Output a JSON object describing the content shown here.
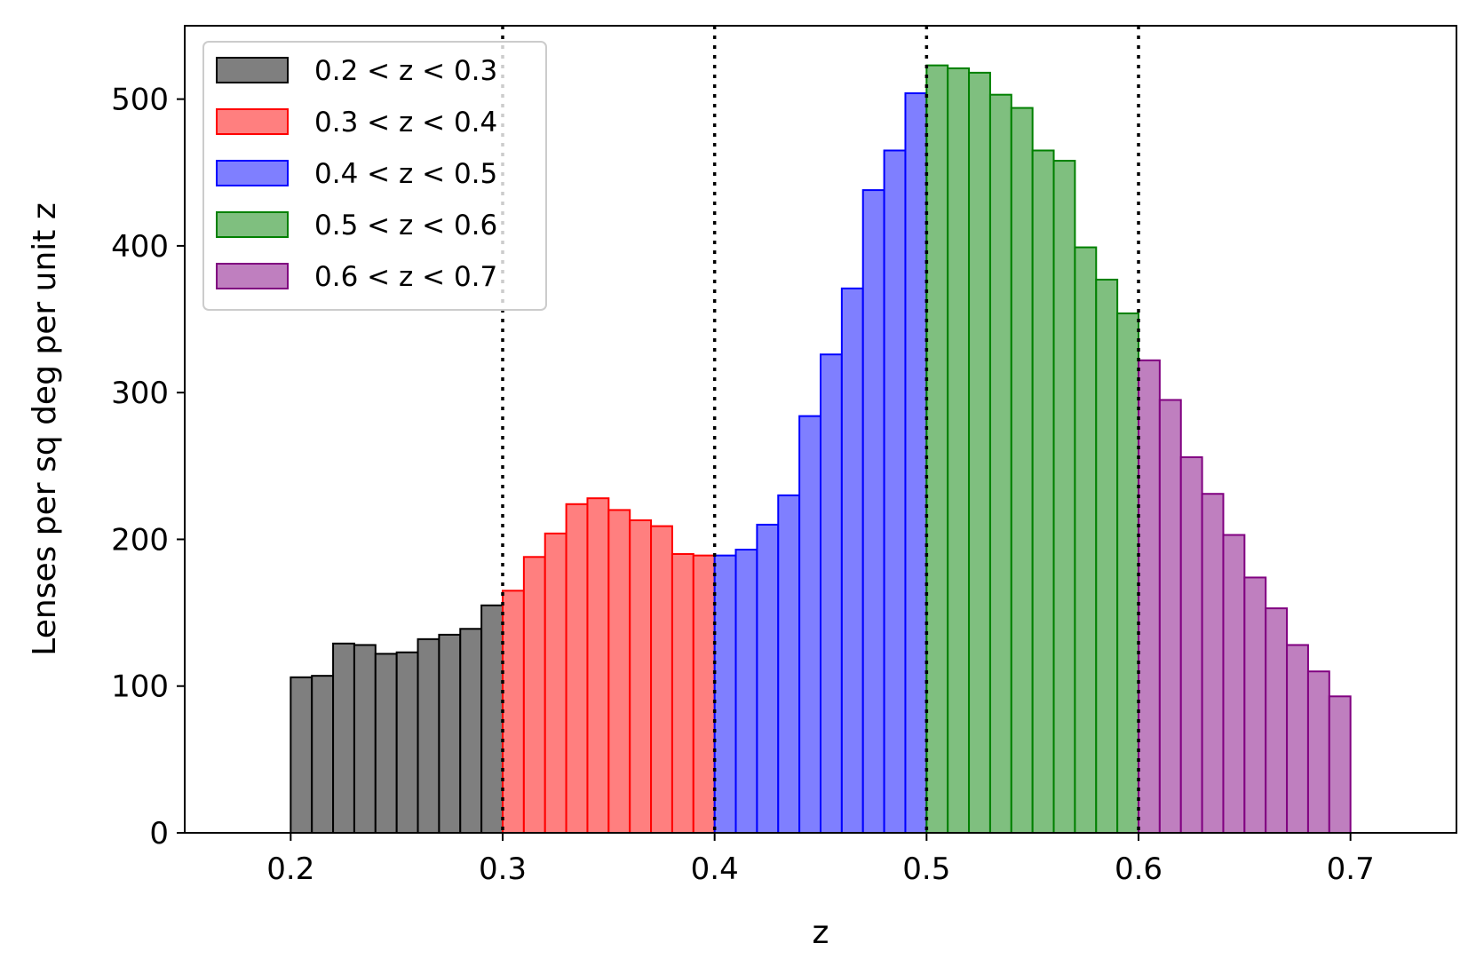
{
  "chart_data": {
    "type": "bar",
    "xlabel": "z",
    "ylabel": "Lenses per sq deg per unit z",
    "xlim": [
      0.15,
      0.75
    ],
    "ylim": [
      0,
      550
    ],
    "xticks": [
      "0.2",
      "0.3",
      "0.4",
      "0.5",
      "0.6",
      "0.7"
    ],
    "yticks": [
      "0",
      "100",
      "200",
      "300",
      "400",
      "500"
    ],
    "bin_width": 0.01,
    "vlines": [
      0.3,
      0.4,
      0.5,
      0.6
    ],
    "legend_position": "top-left",
    "grid": false,
    "series": [
      {
        "name": "0.2 < z < 0.3",
        "color": "#7f7f7f",
        "edge": "#000000",
        "x_start": 0.2,
        "values": [
          106,
          107,
          129,
          128,
          122,
          123,
          132,
          135,
          139,
          155
        ]
      },
      {
        "name": "0.3 < z < 0.4",
        "color": "#ff7f7f",
        "edge": "#ff0000",
        "x_start": 0.3,
        "values": [
          165,
          188,
          204,
          224,
          228,
          220,
          213,
          209,
          190,
          189
        ]
      },
      {
        "name": "0.4 < z < 0.5",
        "color": "#7f7fff",
        "edge": "#0000ff",
        "x_start": 0.4,
        "values": [
          189,
          193,
          210,
          230,
          284,
          326,
          371,
          438,
          465,
          504
        ]
      },
      {
        "name": "0.5 < z < 0.6",
        "color": "#7fbf7f",
        "edge": "#008000",
        "x_start": 0.5,
        "values": [
          523,
          521,
          518,
          503,
          494,
          465,
          458,
          399,
          377,
          354
        ]
      },
      {
        "name": "0.6 < z < 0.7",
        "color": "#bf7fbf",
        "edge": "#800080",
        "x_start": 0.6,
        "values": [
          322,
          295,
          256,
          231,
          203,
          174,
          153,
          128,
          110,
          93
        ]
      }
    ]
  }
}
